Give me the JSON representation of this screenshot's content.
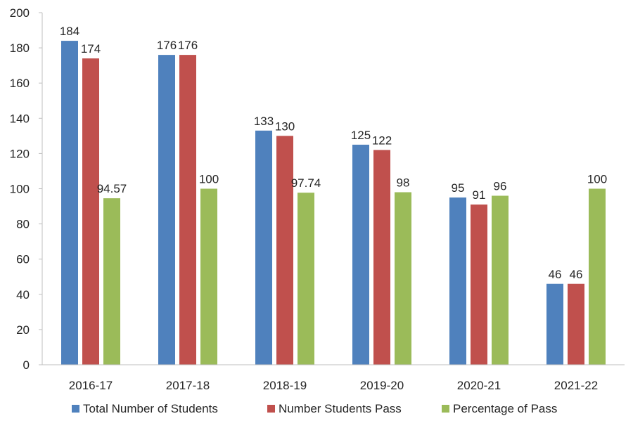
{
  "chart_data": {
    "type": "bar",
    "categories": [
      "2016-17",
      "2017-18",
      "2018-19",
      "2019-20",
      "2020-21",
      "2021-22"
    ],
    "series": [
      {
        "name": "Total Number of Students",
        "color": "#4F81BD",
        "values": [
          184,
          176,
          133,
          125,
          95,
          46
        ],
        "labels": [
          "184",
          "176",
          "133",
          "125",
          "95",
          "46"
        ]
      },
      {
        "name": "Number Students Pass",
        "color": "#C0504D",
        "values": [
          174,
          176,
          130,
          122,
          91,
          46
        ],
        "labels": [
          "174",
          "176",
          "130",
          "122",
          "91",
          "46"
        ]
      },
      {
        "name": "Percentage of Pass",
        "color": "#9BBB59",
        "values": [
          94.57,
          100,
          97.74,
          98,
          96,
          100
        ],
        "labels": [
          "94.57",
          "100",
          "97.74",
          "98",
          "96",
          "100"
        ]
      }
    ],
    "ylim": [
      0,
      200
    ],
    "yticks": [
      "0",
      "20",
      "40",
      "60",
      "80",
      "100",
      "120",
      "140",
      "160",
      "180",
      "200"
    ],
    "grid": false,
    "legend": "bottom"
  }
}
